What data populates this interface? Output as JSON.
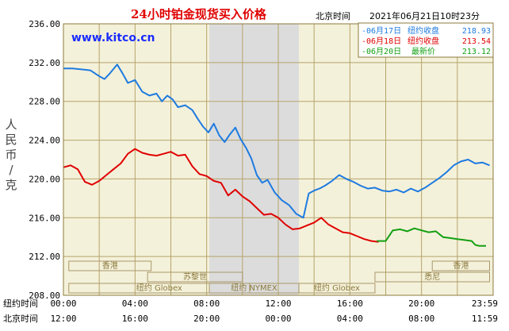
{
  "chart_data": {
    "type": "line",
    "title": "24小时铂金现货买入价格",
    "brand": "www.kitco.cn",
    "timestamp_label": "北京时间",
    "timestamp": "2021年06月21日10时23分",
    "ylabel": "人民币/克",
    "ylim": [
      208,
      236
    ],
    "yticks": [
      "236.00",
      "232.00",
      "228.00",
      "224.00",
      "220.00",
      "216.00",
      "212.00",
      "208.00"
    ],
    "x_rows": [
      {
        "label": "纽约时间",
        "ticks": [
          "00:00",
          "04:00",
          "08:00",
          "12:00",
          "16:00",
          "20:00",
          "23:59"
        ]
      },
      {
        "label": "北京时间",
        "ticks": [
          "12:00",
          "16:00",
          "20:00",
          "00:00",
          "04:00",
          "08:00",
          "11:59"
        ]
      }
    ],
    "shaded_range": [
      8.15,
      13.15
    ],
    "sessions": [
      {
        "label": "香港",
        "start": 0.3,
        "end": 4.9,
        "row": 0
      },
      {
        "label": "纽约 Globex",
        "start": 0.3,
        "end": 10.4,
        "row": 2
      },
      {
        "label": "苏黎世",
        "start": 4.7,
        "end": 10.0,
        "row": 1
      },
      {
        "label": "纽约 NYMEX",
        "start": 8.15,
        "end": 13.15,
        "row": 2
      },
      {
        "label": "纽约 Globex",
        "start": 13.15,
        "end": 17.4,
        "row": 2
      },
      {
        "label": "悉尼",
        "start": 17.4,
        "end": 23.8,
        "row": 1
      },
      {
        "label": "香港",
        "start": 20.6,
        "end": 23.8,
        "row": 0
      }
    ],
    "series": [
      {
        "name": "06月17日",
        "legend_tag": "纽约收盘",
        "legend_value": "218.93",
        "color": "#1e7be0",
        "x": [
          0,
          0.5,
          1,
          1.5,
          2,
          2.3,
          2.6,
          3,
          3.3,
          3.6,
          4,
          4.4,
          4.8,
          5.2,
          5.5,
          5.8,
          6.1,
          6.4,
          6.8,
          7.2,
          7.5,
          7.8,
          8.1,
          8.4,
          8.7,
          9,
          9.3,
          9.6,
          9.9,
          10.2,
          10.5,
          10.8,
          11.1,
          11.4,
          11.8,
          12.2,
          12.6,
          13,
          13.4,
          13.7,
          14,
          14.3,
          14.6,
          15,
          15.4,
          15.8,
          16.2,
          16.6,
          17,
          17.4,
          17.8,
          18.2,
          18.6,
          19,
          19.4,
          19.8,
          20.2,
          20.6,
          21,
          21.4,
          21.8,
          22.2,
          22.6,
          23,
          23.4,
          23.8
        ],
        "y": [
          231.4,
          231.4,
          231.3,
          231.2,
          230.6,
          230.3,
          230.9,
          231.8,
          230.9,
          229.9,
          230.2,
          229.0,
          228.6,
          228.8,
          228.0,
          228.6,
          228.2,
          227.4,
          227.6,
          227.1,
          226.2,
          225.4,
          224.8,
          225.7,
          224.5,
          223.8,
          224.6,
          225.3,
          224.1,
          223.2,
          222.1,
          220.4,
          219.6,
          219.9,
          218.6,
          217.8,
          217.3,
          216.4,
          216.0,
          218.5,
          218.8,
          219.0,
          219.3,
          219.8,
          220.4,
          220.0,
          219.7,
          219.3,
          219.0,
          219.1,
          218.8,
          218.7,
          218.9,
          218.6,
          219.0,
          218.7,
          219.1,
          219.6,
          220.1,
          220.7,
          221.4,
          221.8,
          222.0,
          221.6,
          221.7,
          221.4
        ]
      },
      {
        "name": "06月18日",
        "legend_tag": "纽约收盘",
        "legend_value": "213.54",
        "color": "#e00000",
        "x": [
          0,
          0.4,
          0.8,
          1.2,
          1.6,
          2,
          2.4,
          2.8,
          3.2,
          3.6,
          4,
          4.4,
          4.8,
          5.2,
          5.6,
          6,
          6.4,
          6.8,
          7.2,
          7.6,
          8,
          8.4,
          8.8,
          9.2,
          9.6,
          10,
          10.4,
          10.8,
          11.2,
          11.6,
          12,
          12.4,
          12.8,
          13.2,
          13.6,
          14,
          14.4,
          14.8,
          15.2,
          15.6,
          16,
          16.4,
          16.8,
          17.2,
          17.6
        ],
        "y": [
          221.2,
          221.4,
          221.0,
          219.7,
          219.4,
          219.8,
          220.4,
          221.0,
          221.6,
          222.6,
          223.1,
          222.7,
          222.5,
          222.4,
          222.6,
          222.8,
          222.4,
          222.5,
          221.3,
          220.5,
          220.3,
          219.8,
          219.6,
          218.3,
          218.9,
          218.2,
          217.7,
          217.0,
          216.3,
          216.4,
          216.0,
          215.3,
          214.8,
          214.9,
          215.2,
          215.5,
          216.0,
          215.3,
          214.9,
          214.5,
          214.4,
          214.1,
          213.8,
          213.6,
          213.5
        ]
      },
      {
        "name": "06月20日",
        "legend_tag": "最新价",
        "legend_value": "213.12",
        "color": "#12a012",
        "x": [
          17.5,
          18,
          18.4,
          18.8,
          19.2,
          19.6,
          20,
          20.4,
          20.8,
          21.2,
          21.6,
          22,
          22.4,
          22.8,
          23,
          23.2,
          23.4,
          23.6
        ],
        "y": [
          213.6,
          213.6,
          214.7,
          214.8,
          214.6,
          214.9,
          214.7,
          214.5,
          214.6,
          214.0,
          213.9,
          213.8,
          213.7,
          213.6,
          213.2,
          213.1,
          213.1,
          213.1
        ]
      }
    ]
  }
}
